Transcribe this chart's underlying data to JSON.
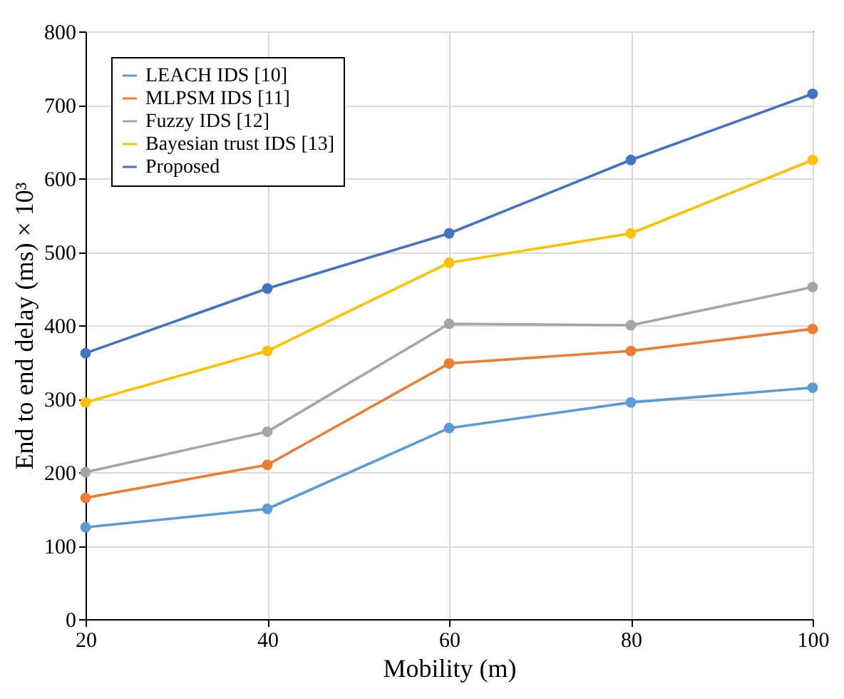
{
  "chart_data": {
    "type": "line",
    "xlabel": "Mobility (m)",
    "ylabel": "End to end delay (ms) × 10³",
    "x": [
      20,
      40,
      60,
      80,
      100
    ],
    "xlim": [
      20,
      100
    ],
    "xticks": [
      20,
      40,
      60,
      80,
      100
    ],
    "ylim": [
      0,
      800
    ],
    "yticks": [
      0,
      100,
      200,
      300,
      400,
      500,
      600,
      700,
      800
    ],
    "grid": true,
    "legend": "top left",
    "marker": "circle",
    "line_style": "solid",
    "series": [
      {
        "name": "LEACH IDS [10]",
        "color": "#5b9bd5",
        "values": [
          125,
          150,
          260,
          295,
          315
        ]
      },
      {
        "name": "MLPSM IDS [11]",
        "color": "#ed7d31",
        "values": [
          165,
          210,
          348,
          365,
          395
        ]
      },
      {
        "name": "Fuzzy IDS [12]",
        "color": "#a5a5a5",
        "values": [
          200,
          255,
          402,
          400,
          452
        ]
      },
      {
        "name": "Bayesian trust IDS [13]",
        "color": "#ffc000",
        "values": [
          295,
          365,
          485,
          525,
          625
        ]
      },
      {
        "name": "Proposed",
        "color": "#4472c4",
        "values": [
          362,
          450,
          525,
          625,
          715
        ]
      }
    ]
  }
}
